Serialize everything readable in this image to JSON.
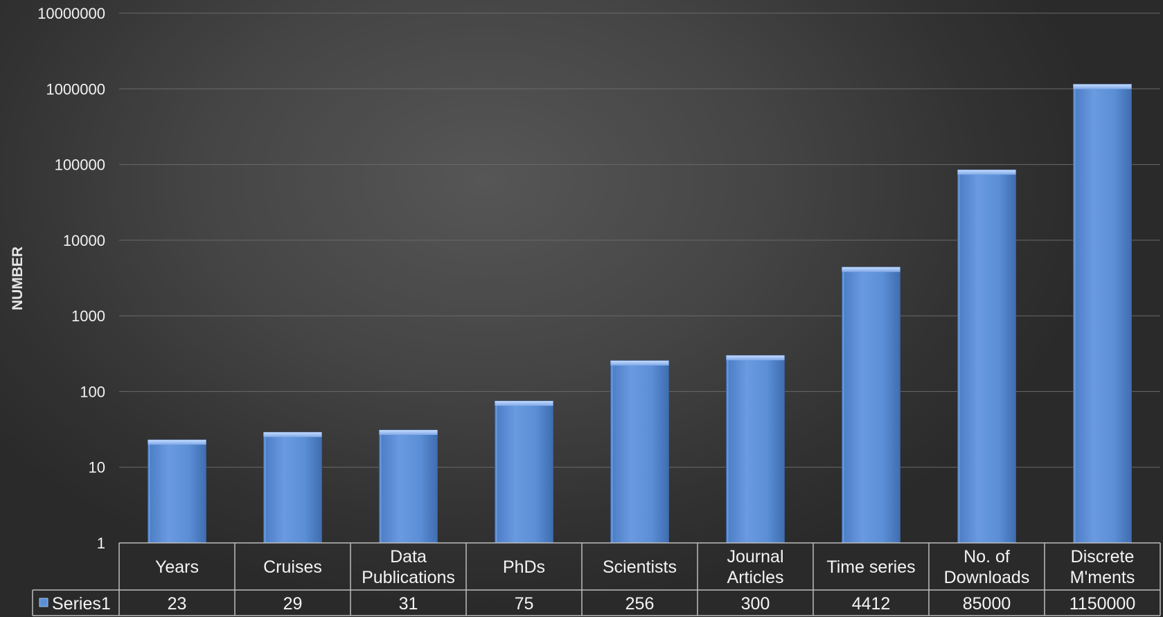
{
  "chart_data": {
    "type": "bar",
    "title": "",
    "xlabel": "",
    "ylabel": "NUMBER",
    "yscale": "log",
    "ylim": [
      1,
      10000000
    ],
    "yticks": [
      "1",
      "10",
      "100",
      "1000",
      "10000",
      "100000",
      "1000000",
      "10000000"
    ],
    "grid": true,
    "legend": "data-table",
    "categories": [
      [
        "Years"
      ],
      [
        "Cruises"
      ],
      [
        "Data",
        "Publications"
      ],
      [
        "PhDs"
      ],
      [
        "Scientists"
      ],
      [
        "Journal",
        "Articles"
      ],
      [
        "Time series"
      ],
      [
        "No. of",
        "Downloads"
      ],
      [
        "Discrete",
        "M'ments"
      ]
    ],
    "series": [
      {
        "name": "Series1",
        "color": "#5b8fd6",
        "values": [
          23,
          29,
          31,
          75,
          256,
          300,
          4412,
          85000,
          1150000
        ]
      }
    ]
  }
}
